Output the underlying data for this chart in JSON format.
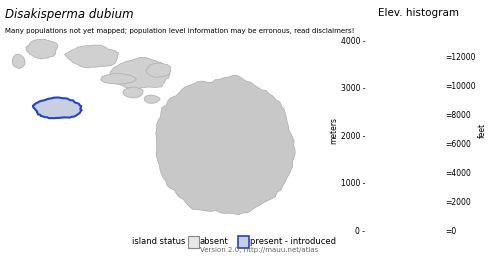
{
  "title": "Disakisperma dubium",
  "subtitle": "Many populations not yet mapped; population level information may be erronous, read disclaimers!",
  "elev_title": "Elev. histogram",
  "legend_label": "island status",
  "legend_absent": "absent",
  "legend_present": "present - introduced",
  "version_text": "Version 2.0; http://mauu.net/atlas",
  "bg_color": "#ffffff",
  "island_fill": "#d0d0d0",
  "island_edge": "#aaaaaa",
  "highlighted_edge": "#2244cc",
  "highlighted_fill": "#c8cfe0",
  "axis_label_meters": "meters",
  "axis_label_feet": "feet",
  "yticks_meters": [
    0,
    1000,
    2000,
    3000,
    4000
  ],
  "yticks_feet": [
    0,
    2000,
    4000,
    6000,
    8000,
    10000,
    12000
  ]
}
